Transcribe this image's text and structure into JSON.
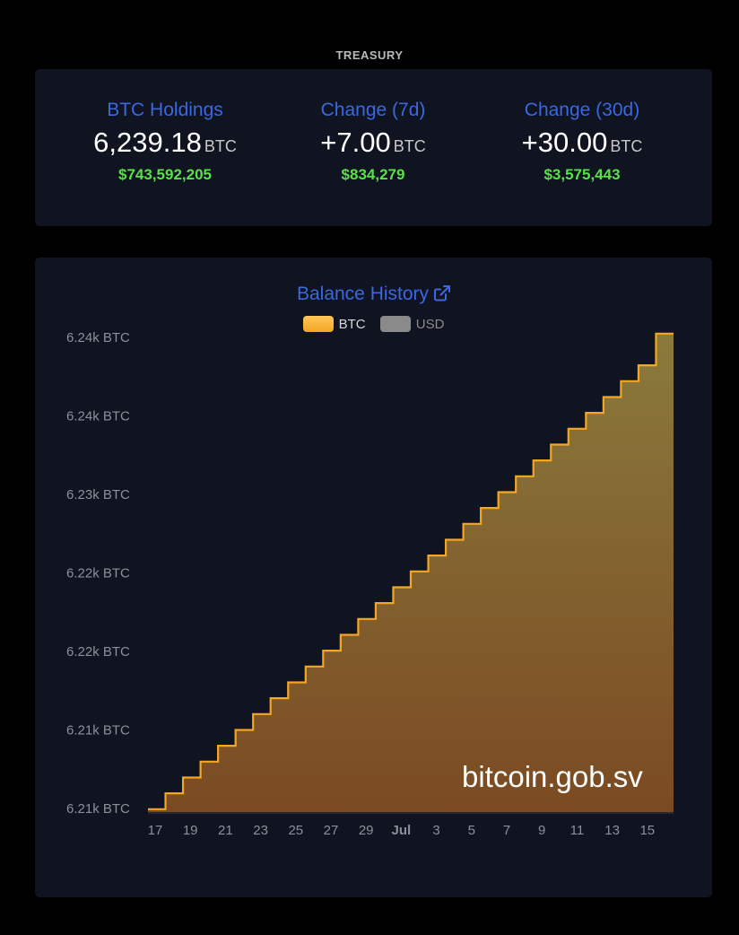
{
  "section_title": "TREASURY",
  "stats": [
    {
      "label": "BTC Holdings",
      "value": "6,239.18",
      "unit": "BTC",
      "usd": "$743,592,205"
    },
    {
      "label": "Change (7d)",
      "value": "+7.00",
      "unit": "BTC",
      "usd": "$834,279"
    },
    {
      "label": "Change (30d)",
      "value": "+30.00",
      "unit": "BTC",
      "usd": "$3,575,443"
    }
  ],
  "chart": {
    "title": "Balance History",
    "title_icon": "external-link-icon",
    "watermark": "bitcoin.gob.sv",
    "legend": [
      {
        "label": "BTC",
        "color": "#f5a623",
        "active": true
      },
      {
        "label": "USD",
        "color": "#8a8a8a",
        "active": false
      }
    ]
  },
  "chart_data": {
    "type": "area",
    "step": true,
    "series": [
      {
        "name": "BTC",
        "color": "#f5a623",
        "x": [
          "Jun 17",
          "Jun 18",
          "Jun 19",
          "Jun 20",
          "Jun 21",
          "Jun 22",
          "Jun 23",
          "Jun 24",
          "Jun 25",
          "Jun 26",
          "Jun 27",
          "Jun 28",
          "Jun 29",
          "Jun 30",
          "Jul 1",
          "Jul 2",
          "Jul 3",
          "Jul 4",
          "Jul 5",
          "Jul 6",
          "Jul 7",
          "Jul 8",
          "Jul 9",
          "Jul 10",
          "Jul 11",
          "Jul 12",
          "Jul 13",
          "Jul 14",
          "Jul 15",
          "Jul 16"
        ],
        "values": [
          6209.18,
          6210.18,
          6211.18,
          6212.18,
          6213.18,
          6214.18,
          6215.18,
          6216.18,
          6217.18,
          6218.18,
          6219.18,
          6220.18,
          6221.18,
          6222.18,
          6223.18,
          6224.18,
          6225.18,
          6226.18,
          6227.18,
          6228.18,
          6229.18,
          6230.18,
          6231.18,
          6232.18,
          6233.18,
          6234.18,
          6235.18,
          6236.18,
          6237.18,
          6239.18
        ]
      }
    ],
    "x_tick_labels": [
      "17",
      "19",
      "21",
      "23",
      "25",
      "27",
      "29",
      "Jul",
      "3",
      "5",
      "7",
      "9",
      "11",
      "13",
      "15"
    ],
    "y_tick_labels": [
      "6.24k BTC",
      "6.24k BTC",
      "6.23k BTC",
      "6.22k BTC",
      "6.22k BTC",
      "6.21k BTC",
      "6.21k BTC"
    ],
    "ylim": [
      6209,
      6239
    ],
    "grid": false
  }
}
